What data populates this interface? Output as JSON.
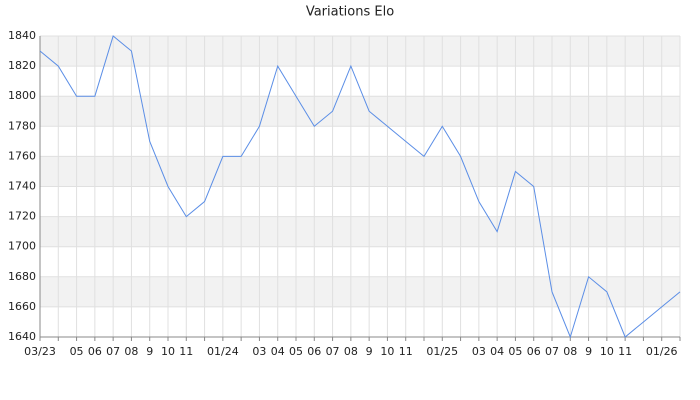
{
  "chart_data": {
    "type": "line",
    "title": "Variations Elo",
    "categories": [
      "03/23",
      null,
      "05",
      "06",
      "07",
      "08",
      "9",
      "10",
      "11",
      null,
      "01/24",
      null,
      "03",
      "04",
      "05",
      "06",
      "07",
      "08",
      "9",
      "10",
      "11",
      null,
      "01/25",
      null,
      "03",
      "04",
      "05",
      "06",
      "07",
      "08",
      "9",
      "10",
      "11",
      null,
      "01/26",
      null
    ],
    "series": [
      {
        "color": "#5b8ee6",
        "values": [
          1830,
          1820,
          1800,
          1800,
          1840,
          1830,
          1770,
          1740,
          1720,
          1730,
          1760,
          1760,
          1780,
          1820,
          1800,
          1780,
          1790,
          1820,
          1790,
          1780,
          1770,
          1760,
          1780,
          1760,
          1730,
          1710,
          1750,
          1740,
          1670,
          1640,
          1680,
          1670,
          1640,
          1650,
          1660,
          1670
        ]
      }
    ],
    "ylim": [
      1640,
      1840
    ],
    "yticks": [
      1640,
      1660,
      1680,
      1700,
      1720,
      1740,
      1760,
      1780,
      1800,
      1820,
      1840
    ],
    "grid": true
  }
}
